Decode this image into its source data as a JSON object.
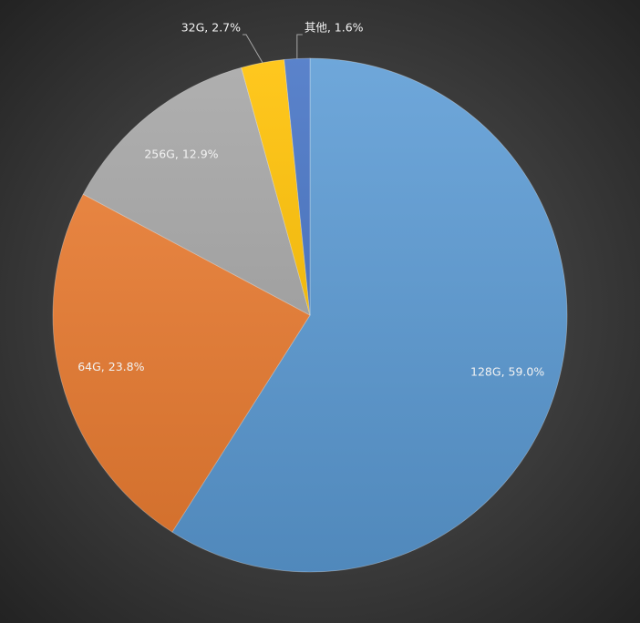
{
  "chart_data": {
    "type": "pie",
    "values": [
      59.0,
      23.8,
      12.9,
      2.7,
      1.6
    ],
    "value_labels": [
      "128G, 59.0%",
      "64G, 23.8%",
      "256G, 12.9%",
      "32G, 2.7%",
      "其他, 1.6%"
    ],
    "colors": [
      "#5b9bd5",
      "#ed7d31",
      "#a5a5a5",
      "#ffc000",
      "#4472c4"
    ]
  }
}
